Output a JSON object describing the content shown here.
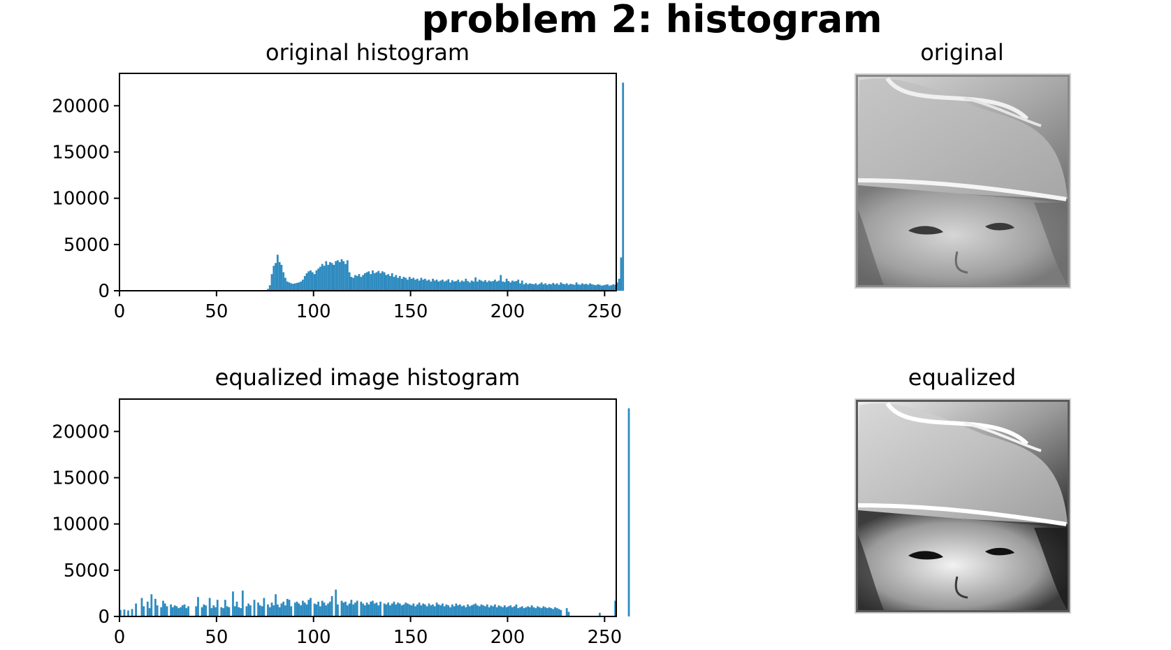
{
  "figure": {
    "suptitle": "problem 2: histogram"
  },
  "colors": {
    "bar": "#2e8bc0",
    "axis": "#000000",
    "background": "#ffffff"
  },
  "images": [
    {
      "title": "original",
      "description_icon": "portrait-photo-icon"
    },
    {
      "title": "equalized",
      "description_icon": "portrait-photo-icon"
    }
  ],
  "chart_data": [
    {
      "type": "bar",
      "title": "original histogram",
      "xlabel": "",
      "ylabel": "",
      "xlim": [
        0,
        256
      ],
      "ylim": [
        0,
        23500
      ],
      "xticks": [
        0,
        50,
        100,
        150,
        200,
        250
      ],
      "yticks": [
        0,
        5000,
        10000,
        15000,
        20000
      ],
      "grid": false,
      "bin_values": [
        0,
        0,
        0,
        0,
        0,
        0,
        0,
        0,
        0,
        0,
        0,
        0,
        0,
        0,
        0,
        0,
        0,
        0,
        0,
        0,
        0,
        0,
        0,
        0,
        0,
        0,
        0,
        0,
        0,
        0,
        0,
        0,
        0,
        0,
        0,
        0,
        0,
        0,
        0,
        0,
        0,
        0,
        0,
        0,
        0,
        0,
        0,
        0,
        0,
        0,
        0,
        0,
        0,
        0,
        0,
        0,
        0,
        0,
        0,
        0,
        0,
        0,
        0,
        0,
        0,
        0,
        0,
        0,
        0,
        0,
        0,
        0,
        0,
        0,
        0,
        0,
        200,
        600,
        1800,
        2700,
        3000,
        3900,
        3100,
        2800,
        2000,
        1400,
        1000,
        900,
        800,
        750,
        800,
        850,
        900,
        1000,
        1200,
        1600,
        1900,
        2100,
        2200,
        2000,
        1800,
        2200,
        2400,
        2600,
        2900,
        2700,
        3200,
        2800,
        3100,
        3000,
        2800,
        3200,
        3300,
        3100,
        3400,
        3200,
        2900,
        3300,
        2000,
        1500,
        1400,
        1700,
        1600,
        1800,
        1500,
        1700,
        1900,
        2000,
        2100,
        1800,
        2200,
        1900,
        2000,
        2150,
        1900,
        2100,
        2000,
        1700,
        1800,
        1600,
        1900,
        1500,
        1700,
        1400,
        1600,
        1300,
        1500,
        1400,
        1200,
        1500,
        1300,
        1400,
        1200,
        1300,
        1100,
        1400,
        1200,
        1300,
        1100,
        1200,
        1000,
        1300,
        1100,
        1200,
        1000,
        1100,
        1200,
        1000,
        1100,
        1250,
        900,
        1150,
        1000,
        1050,
        1200,
        950,
        1100,
        1000,
        1300,
        1050,
        900,
        1100,
        1000,
        1450,
        1000,
        1200,
        1100,
        1000,
        1150,
        950,
        1100,
        1000,
        1050,
        1200,
        1000,
        1100,
        1700,
        1000,
        950,
        1300,
        1050,
        900,
        1100,
        1000,
        1050,
        1200,
        800,
        1100,
        700,
        850,
        700,
        800,
        750,
        700,
        800,
        650,
        750,
        900,
        700,
        800,
        650,
        750,
        700,
        850,
        700,
        800,
        650,
        900,
        750,
        700,
        800,
        650,
        750,
        700,
        650,
        900,
        700,
        650,
        800,
        700,
        750,
        650,
        800,
        700,
        650,
        600,
        700,
        650,
        550,
        600,
        650,
        700,
        550,
        600,
        700,
        650,
        900,
        1300,
        3600,
        22500
      ]
    },
    {
      "type": "bar",
      "title": "equalized image histogram",
      "xlabel": "",
      "ylabel": "",
      "xlim": [
        0,
        256
      ],
      "ylim": [
        0,
        23500
      ],
      "xticks": [
        0,
        50,
        100,
        150,
        200,
        250
      ],
      "yticks": [
        0,
        5000,
        10000,
        15000,
        20000
      ],
      "grid": false,
      "bin_values": [
        700,
        0,
        750,
        0,
        650,
        0,
        800,
        0,
        1400,
        0,
        0,
        2000,
        1100,
        0,
        1600,
        900,
        2400,
        0,
        1900,
        1200,
        0,
        1000,
        1700,
        1400,
        1100,
        0,
        1300,
        1000,
        1200,
        1100,
        900,
        1000,
        1200,
        1300,
        900,
        1100,
        0,
        0,
        0,
        1100,
        2100,
        0,
        1000,
        1300,
        1200,
        0,
        2000,
        900,
        1200,
        1000,
        1800,
        0,
        1000,
        900,
        1800,
        1100,
        1000,
        0,
        2700,
        1100,
        1600,
        1000,
        900,
        2800,
        0,
        1100,
        1400,
        1200,
        0,
        1800,
        0,
        1500,
        1200,
        1100,
        2000,
        0,
        1300,
        1000,
        1500,
        1200,
        2400,
        1300,
        1000,
        1400,
        1600,
        1200,
        1900,
        1800,
        1100,
        0,
        1500,
        1600,
        1400,
        1200,
        1700,
        1500,
        1300,
        1800,
        2000,
        0,
        1400,
        1300,
        1600,
        1100,
        1700,
        1500,
        1200,
        1400,
        1600,
        2200,
        0,
        2900,
        1300,
        0,
        1700,
        1500,
        1600,
        1200,
        1400,
        1800,
        1300,
        1500,
        1700,
        0,
        1600,
        1400,
        1200,
        1500,
        1300,
        1600,
        1700,
        1400,
        1500,
        1200,
        1600,
        0,
        1400,
        1300,
        1500,
        1200,
        1400,
        1600,
        1300,
        1500,
        1400,
        1200,
        1300,
        1500,
        1400,
        1300,
        1200,
        1400,
        1100,
        1300,
        1500,
        1200,
        1400,
        1300,
        1100,
        1400,
        1200,
        1300,
        1100,
        1500,
        1300,
        1200,
        1400,
        1100,
        1300,
        1200,
        1000,
        1300,
        1100,
        1400,
        1200,
        1300,
        1100,
        1200,
        1000,
        1300,
        1100,
        1200,
        1300,
        1400,
        1200,
        1100,
        1300,
        1200,
        1100,
        1300,
        1000,
        1200,
        1100,
        1300,
        1000,
        1200,
        1100,
        1000,
        1200,
        1000,
        1100,
        1200,
        1000,
        1100,
        1300,
        900,
        1000,
        1100,
        900,
        1000,
        1100,
        1000,
        1200,
        1000,
        900,
        1100,
        1000,
        900,
        1100,
        1000,
        900,
        1000,
        900,
        800,
        1000,
        900,
        800,
        700,
        0,
        0,
        900,
        500,
        0,
        0,
        0,
        0,
        0,
        0,
        0,
        0,
        0,
        0,
        0,
        0,
        0,
        0,
        0,
        400,
        0,
        0,
        0,
        0,
        0,
        0,
        0,
        1700,
        0,
        0,
        0,
        0,
        0,
        0,
        22500
      ]
    }
  ]
}
